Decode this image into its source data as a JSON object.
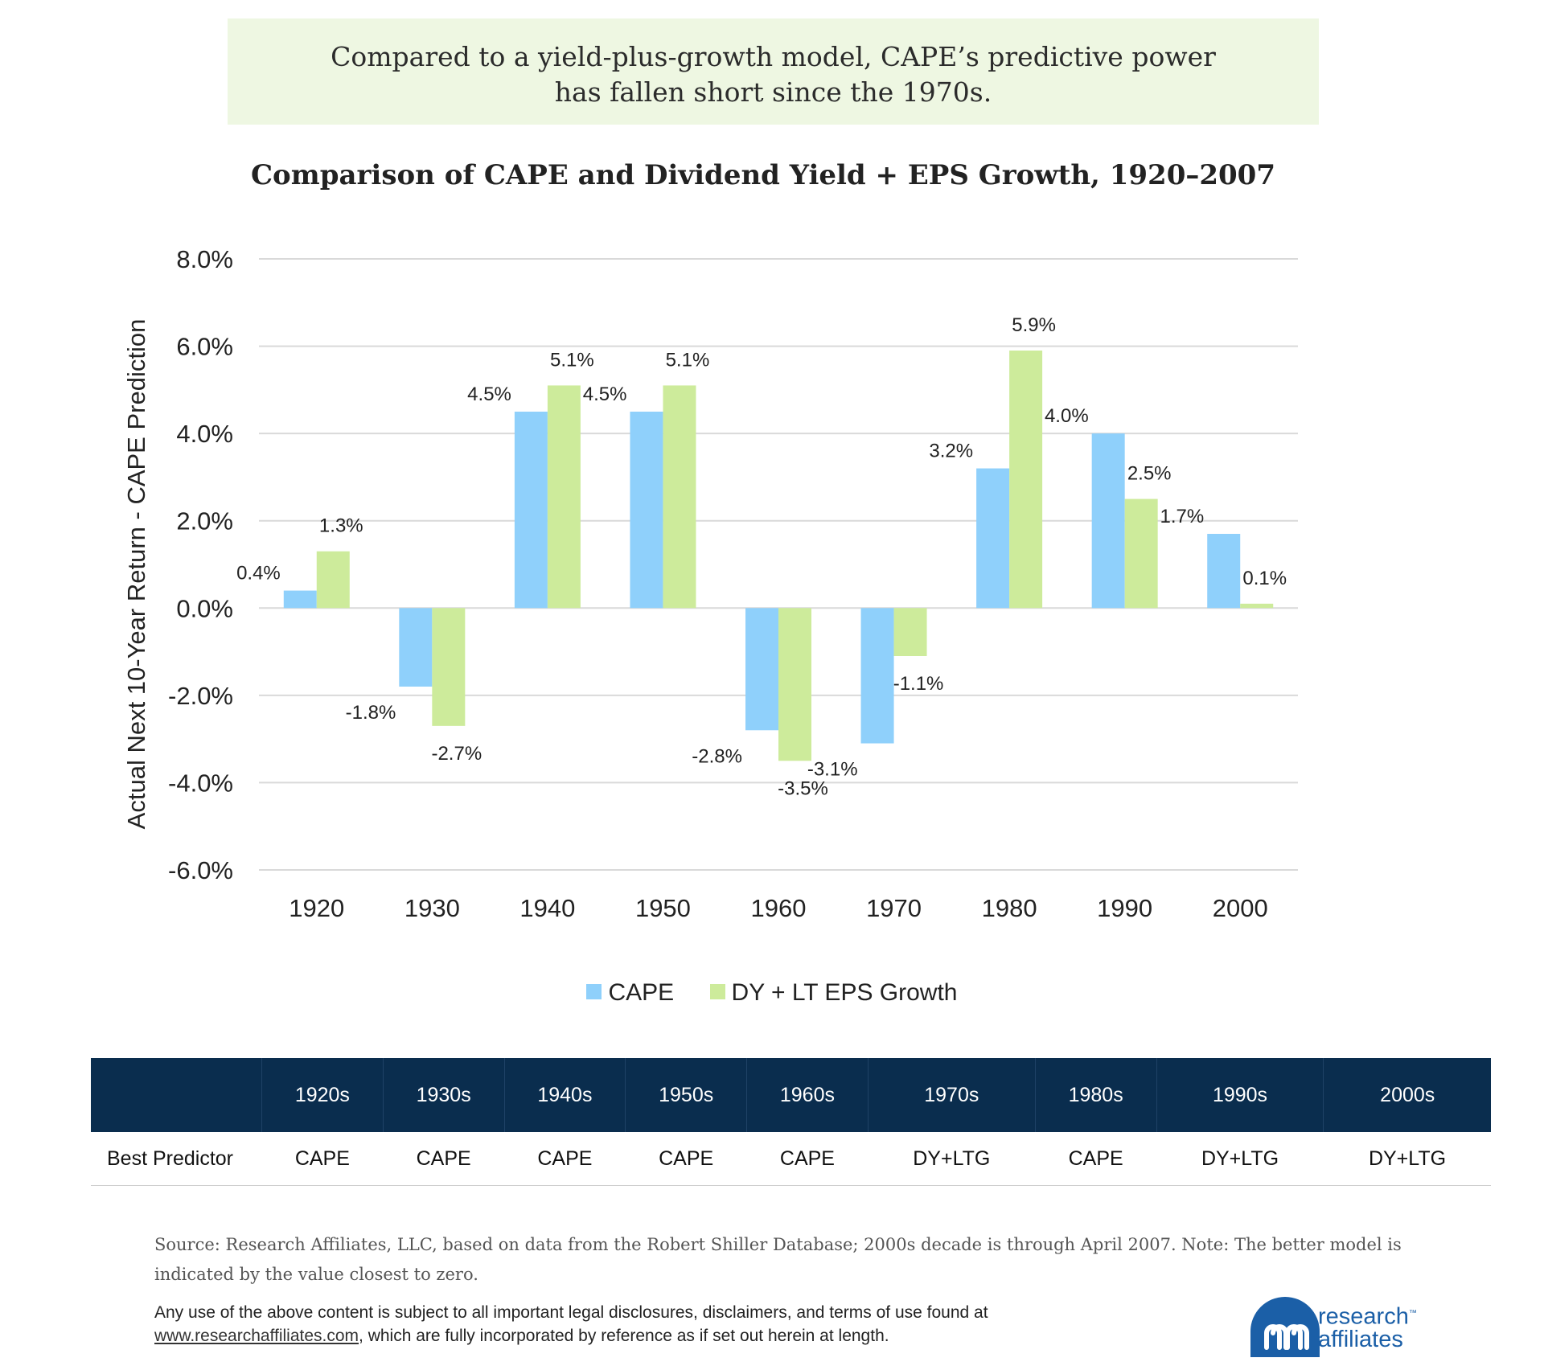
{
  "headline": {
    "line1": "Compared to a yield-plus-growth model, CAPE’s predictive power",
    "line2": "has fallen short since the 1970s."
  },
  "chart_data": {
    "type": "bar",
    "title": "Comparison of CAPE and Dividend Yield + EPS Growth, 1920–2007",
    "xlabel": "",
    "ylabel": "Actual Next 10-Year Return - CAPE Prediction",
    "ylim": [
      -6,
      8
    ],
    "yticks": [
      8,
      6,
      4,
      2,
      0,
      -2,
      -4,
      -6
    ],
    "ytick_labels": [
      "8.0%",
      "6.0%",
      "4.0%",
      "2.0%",
      "0.0%",
      "-2.0%",
      "-4.0%",
      "-6.0%"
    ],
    "categories": [
      "1920",
      "1930",
      "1940",
      "1950",
      "1960",
      "1970",
      "1980",
      "1990",
      "2000"
    ],
    "series": [
      {
        "name": "CAPE",
        "color": "#8fd0fb",
        "values": [
          0.4,
          -1.8,
          4.5,
          4.5,
          -2.8,
          -3.1,
          3.2,
          4.0,
          1.7
        ],
        "labels": [
          "0.4%",
          "-1.8%",
          "4.5%",
          "4.5%",
          "-2.8%",
          "-3.1%",
          "3.2%",
          "4.0%",
          "1.7%"
        ]
      },
      {
        "name": "DY + LT EPS Growth",
        "color": "#cdeb9b",
        "values": [
          1.3,
          -2.7,
          5.1,
          5.1,
          -3.5,
          -1.1,
          5.9,
          2.5,
          0.1
        ],
        "labels": [
          "1.3%",
          "-2.7%",
          "5.1%",
          "5.1%",
          "-3.5%",
          "-1.1%",
          "5.9%",
          "2.5%",
          "0.1%"
        ]
      }
    ],
    "grid": true,
    "legend": "bottom-center"
  },
  "table": {
    "row_label": "Best Predictor",
    "decades": [
      "1920s",
      "1930s",
      "1940s",
      "1950s",
      "1960s",
      "1970s",
      "1980s",
      "1990s",
      "2000s"
    ],
    "best": [
      "CAPE",
      "CAPE",
      "CAPE",
      "CAPE",
      "CAPE",
      "DY+LTG",
      "CAPE",
      "DY+LTG",
      "DY+LTG"
    ]
  },
  "source": {
    "line1": "Source: Research Affiliates, LLC, based on data from the Robert Shiller Database; 2000s decade is through April 2007. Note: The better model is",
    "line2": "indicated by the value closest to zero."
  },
  "legal": {
    "line1": "Any use of the above content is subject to all important legal disclosures, disclaimers, and terms of use found at",
    "link": "www.researchaffiliates.com",
    "line2_rest": ", which are fully incorporated by reference as if set out herein at length."
  },
  "logo": {
    "line1": "research",
    "trademark": "™",
    "line2": "affiliates",
    "color": "#1b5fa7"
  }
}
